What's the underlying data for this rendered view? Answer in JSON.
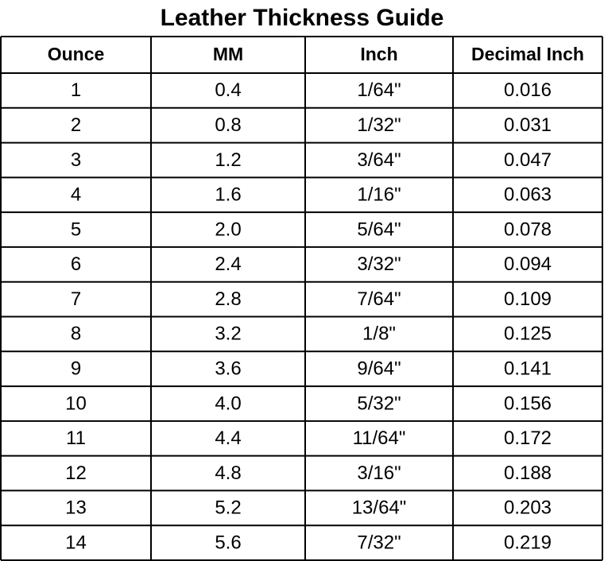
{
  "header": {
    "title": "Leather Thickness Guide"
  },
  "table": {
    "columns": [
      "Ounce",
      "MM",
      "Inch",
      "Decimal Inch"
    ],
    "rows": [
      [
        "1",
        "0.4",
        "1/64\"",
        "0.016"
      ],
      [
        "2",
        "0.8",
        "1/32\"",
        "0.031"
      ],
      [
        "3",
        "1.2",
        "3/64\"",
        "0.047"
      ],
      [
        "4",
        "1.6",
        "1/16\"",
        "0.063"
      ],
      [
        "5",
        "2.0",
        "5/64\"",
        "0.078"
      ],
      [
        "6",
        "2.4",
        "3/32\"",
        "0.094"
      ],
      [
        "7",
        "2.8",
        "7/64\"",
        "0.109"
      ],
      [
        "8",
        "3.2",
        "1/8\"",
        "0.125"
      ],
      [
        "9",
        "3.6",
        "9/64\"",
        "0.141"
      ],
      [
        "10",
        "4.0",
        "5/32\"",
        "0.156"
      ],
      [
        "11",
        "4.4",
        "11/64\"",
        "0.172"
      ],
      [
        "12",
        "4.8",
        "3/16\"",
        "0.188"
      ],
      [
        "13",
        "5.2",
        "13/64\"",
        "0.203"
      ],
      [
        "14",
        "5.6",
        "7/32\"",
        "0.219"
      ]
    ]
  }
}
